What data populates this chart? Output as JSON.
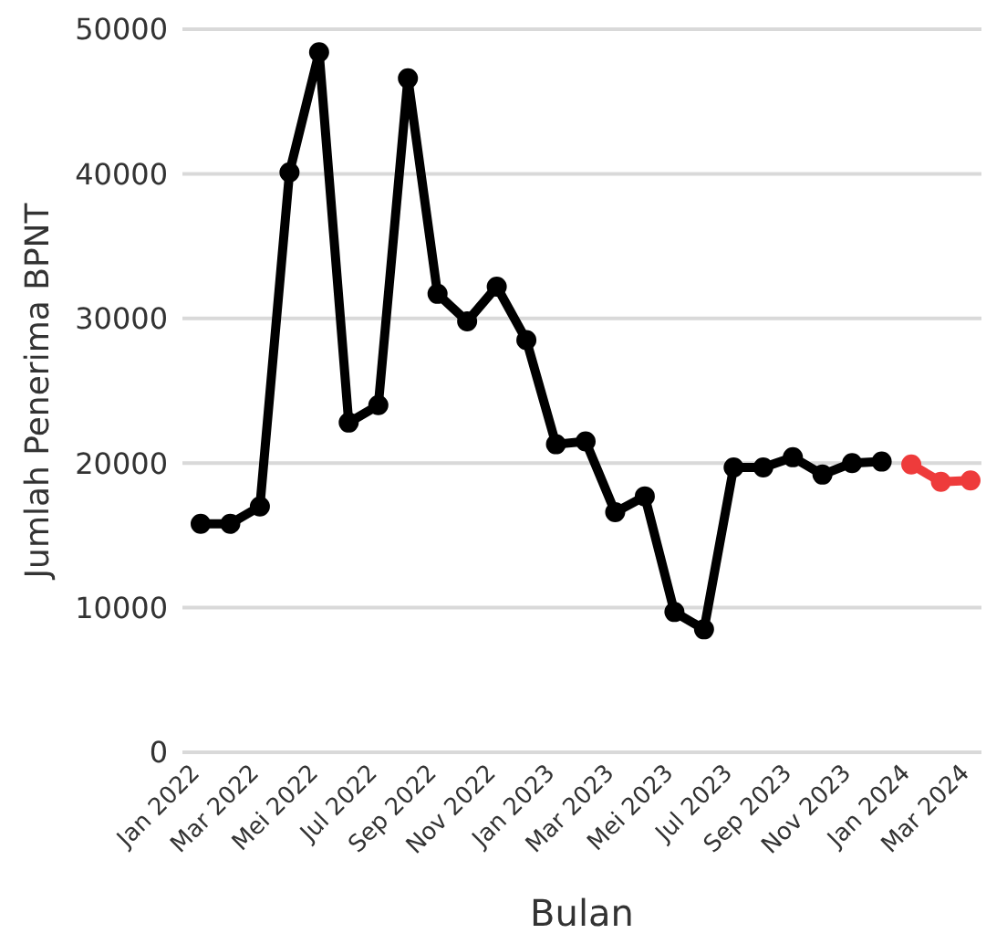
{
  "chart_data": {
    "type": "line",
    "xlabel": "Bulan",
    "ylabel": "Jumlah Penerima BPNT",
    "categories": [
      "Jan 2022",
      null,
      "Mar 2022",
      null,
      "Mei 2022",
      null,
      "Jul 2022",
      null,
      "Sep 2022",
      null,
      "Nov 2022",
      null,
      "Jan 2023",
      null,
      "Mar 2023",
      null,
      "Mei 2023",
      null,
      "Jul 2023",
      null,
      "Sep 2023",
      null,
      "Nov 2023",
      null,
      "Jan 2024",
      null,
      "Mar 2024"
    ],
    "series": [
      {
        "color": "#000000",
        "values": [
          15800,
          15800,
          17000,
          40100,
          48400,
          22800,
          24000,
          46600,
          31700,
          29800,
          32200,
          28500,
          21300,
          21500,
          16600,
          17700,
          9700,
          8500,
          19700,
          19700,
          20400,
          19200,
          20000,
          20100,
          null,
          null,
          null
        ]
      },
      {
        "color": "#ee3b3b",
        "values": [
          null,
          null,
          null,
          null,
          null,
          null,
          null,
          null,
          null,
          null,
          null,
          null,
          null,
          null,
          null,
          null,
          null,
          null,
          null,
          null,
          null,
          null,
          null,
          null,
          19900,
          18700,
          18800
        ]
      }
    ],
    "ylim": [
      0,
      50000
    ],
    "yticks": [
      0,
      10000,
      20000,
      30000,
      40000,
      50000
    ],
    "grid": "y",
    "marker": "circle",
    "line_style": "solid",
    "legend": false
  }
}
